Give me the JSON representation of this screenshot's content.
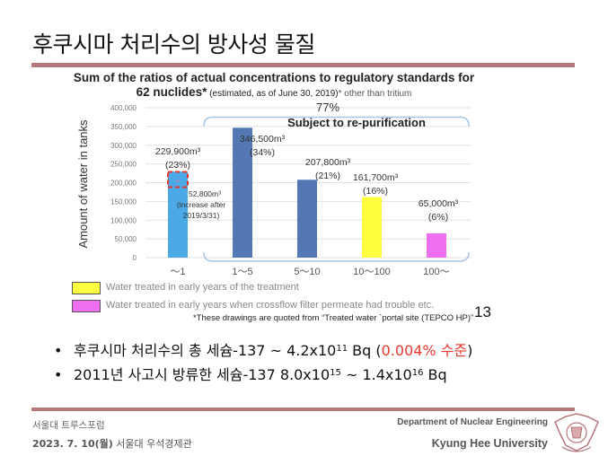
{
  "slide": {
    "title": "후쿠시마 처리수의 방사성 물질",
    "page_number": "13"
  },
  "chart_data": {
    "type": "bar",
    "title_line1": "Sum of the ratios of actual concentrations to regulatory standards for",
    "title_line2_bold": "62 nuclides*",
    "title_line2_paren": " (estimated, as of June 30, 2019)",
    "title_line2_note": "* other than tritium",
    "ylabel": "Amount of water in tanks",
    "xlabel": "",
    "ylim": [
      0,
      400000
    ],
    "yticks": [
      0,
      50000,
      100000,
      150000,
      200000,
      250000,
      300000,
      350000,
      400000
    ],
    "ytick_labels": [
      "0",
      "50,000",
      "100,000",
      "150,000",
      "200,000",
      "250,000",
      "300,000",
      "350,000",
      "400,000"
    ],
    "grid": true,
    "categories": [
      "～1",
      "1～5",
      "5～10",
      "10～100",
      "100～"
    ],
    "values": [
      229900,
      346500,
      207800,
      161700,
      65000
    ],
    "bar_colors": [
      "#4aa9e6",
      "#5378b4",
      "#5378b4",
      "#ffff40",
      "#ee70f0"
    ],
    "value_labels": [
      "229,900m³",
      "346,500m³",
      "207,800m³",
      "161,700m³",
      "65,000m³"
    ],
    "percent_labels": [
      "(23%)",
      "(34%)",
      "(21%)",
      "(16%)",
      "(6%)"
    ],
    "annotation_increase": {
      "value": 52800,
      "label_line1": "52,800m³",
      "label_line2": "(increase after",
      "label_line3": "2019/3/31)",
      "highlight_color": "#e8392e"
    },
    "group_bracket": {
      "label": "Subject to re-purification",
      "percent": "77%",
      "color": "#a9c4e4"
    }
  },
  "legend": [
    {
      "label": "Water treated in early years of the treatment",
      "color": "#ffff40"
    },
    {
      "label": "Water treated in early years when crossflow filter permeate had trouble etc.",
      "color": "#ee70f0"
    }
  ],
  "source_note": "*These drawings are quoted from “Treated water `portal site (TEPCO HP)”",
  "bullets": [
    {
      "text_a": "후쿠시마 처리수의 총 세슘-137 ~ 4.2x10",
      "sup_a": "11",
      "text_b": " Bq (",
      "highlight": "0.004% 수준",
      "text_c": ")"
    },
    {
      "text_a": "2011년 사고시 방류한 세슘-137 8.0x10",
      "sup_a": "15",
      "text_b": " ~ 1.4x10",
      "sup_b": "16",
      "text_c": " Bq"
    }
  ],
  "bullet_symbol": "•",
  "footer": {
    "event": "서울대 트루스포럼",
    "date_bold": "2023. 7. 10(월)",
    "venue": " 서울대 우석경제관",
    "department": "Department of Nuclear Engineering",
    "university": "Kyung Hee University",
    "seal_icon": "university-seal-icon"
  },
  "colors": {
    "rule": "#b5777b",
    "accent_red": "#e8392e"
  }
}
